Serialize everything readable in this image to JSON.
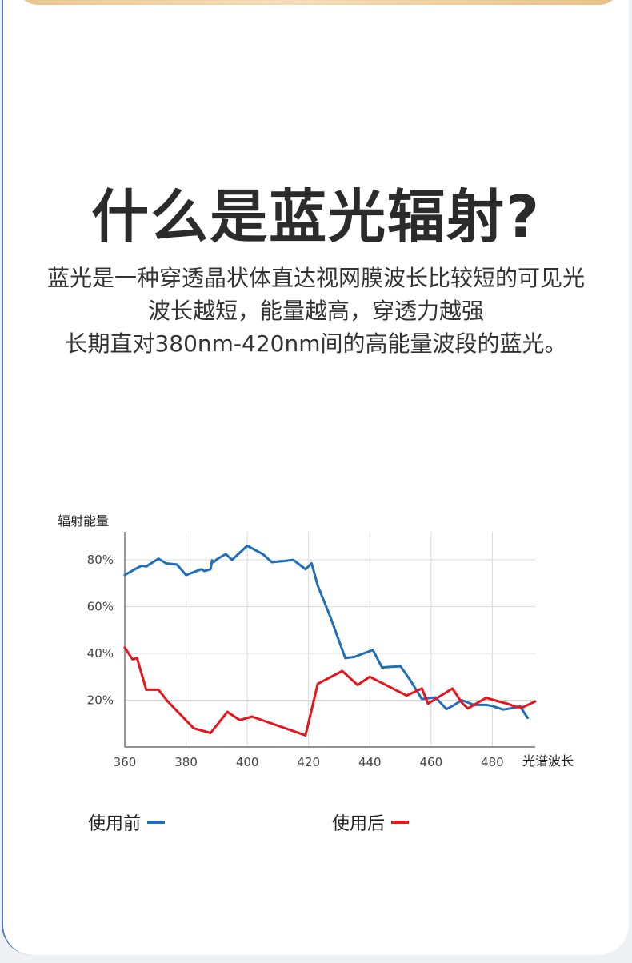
{
  "headline": "什么是蓝光辐射?",
  "description": {
    "line1": "蓝光是一种穿透晶状体直达视网膜波长比较短的可见光",
    "line2": "波长越短，能量越高，穿透力越强",
    "line3": "长期直对380nm-420nm间的高能量波段的蓝光。"
  },
  "legend": [
    {
      "label": "使用前",
      "color": "#1f6fba"
    },
    {
      "label": "使用后",
      "color": "#e8141b"
    }
  ],
  "chart_data": {
    "type": "line",
    "ylabel": "辐射能量",
    "xlabel": "光谱波长",
    "x_ticks": [
      360,
      380,
      400,
      420,
      440,
      460,
      480
    ],
    "y_ticks": [
      20,
      40,
      60,
      80
    ],
    "y_tick_labels": [
      "20%",
      "40%",
      "60%",
      "80%"
    ],
    "xlim": [
      360,
      494
    ],
    "ylim": [
      0,
      92
    ],
    "grid": true,
    "series": [
      {
        "name": "使用前",
        "color": "#1f6fba",
        "x": [
          360,
          364,
          365.5,
          367,
          371,
          373.5,
          377,
          380,
          381,
          385,
          386,
          388,
          388.5,
          389,
          390,
          393,
          395,
          400,
          405,
          408,
          412,
          415,
          419,
          421,
          423,
          427,
          432,
          435,
          441,
          444,
          446,
          450,
          453,
          457,
          460,
          461.5,
          463,
          465,
          467,
          470,
          472,
          474,
          478,
          480,
          483.5,
          486,
          489,
          491.5
        ],
        "y": [
          73.5,
          76.5,
          77.5,
          77.2,
          80.5,
          78.5,
          78,
          73.5,
          74,
          76,
          75.2,
          76,
          79.8,
          79,
          80.2,
          82.5,
          80,
          86,
          82.5,
          79,
          79.5,
          80,
          76,
          78.5,
          69,
          56,
          38,
          38.5,
          41.5,
          34,
          34.2,
          34.5,
          29,
          20.5,
          21,
          21.2,
          19,
          16.2,
          17.5,
          20,
          19,
          18,
          18,
          17.5,
          16,
          16.5,
          17.5,
          12.5
        ]
      },
      {
        "name": "使用后",
        "color": "#e8141b",
        "x": [
          360,
          362.5,
          364,
          367,
          371,
          374,
          382.5,
          388,
          393.5,
          397.5,
          401.5,
          419,
          423,
          431,
          436,
          440,
          452,
          457,
          459,
          467,
          470,
          472,
          478,
          482,
          485,
          488,
          490,
          494
        ],
        "y": [
          42.5,
          37.5,
          38,
          24.5,
          24.5,
          19.5,
          8,
          6,
          15,
          11.5,
          13,
          5,
          27,
          32.5,
          26.5,
          30,
          22,
          25,
          18.5,
          25,
          19,
          16.5,
          21,
          19.5,
          18.5,
          17,
          17,
          19.5
        ]
      }
    ]
  }
}
